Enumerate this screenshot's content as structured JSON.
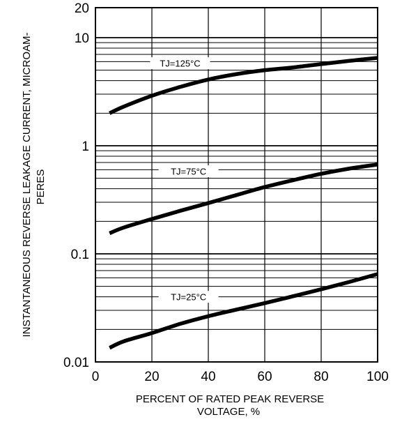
{
  "chart_data": {
    "type": "line",
    "title": "",
    "xlabel_lines": [
      "PERCENT OF RATED PEAK REVERSE",
      "VOLTAGE, %"
    ],
    "ylabel_lines": [
      "INSTANTANEOUS REVERSE LEAKAGE CURRENT, MICROAM-",
      "PERES"
    ],
    "xlim": [
      0,
      100
    ],
    "ylim": [
      0.01,
      20
    ],
    "yscale": "log",
    "grid": true,
    "legend": "none",
    "x_ticks": [
      {
        "value": 0,
        "label": "0"
      },
      {
        "value": 20,
        "label": "20"
      },
      {
        "value": 40,
        "label": "40"
      },
      {
        "value": 60,
        "label": "60"
      },
      {
        "value": 80,
        "label": "80"
      },
      {
        "value": 100,
        "label": "100"
      }
    ],
    "y_ticks": [
      {
        "value": 0.01,
        "label": "0.01"
      },
      {
        "value": 0.1,
        "label": "0.1"
      },
      {
        "value": 1,
        "label": "1"
      },
      {
        "value": 10,
        "label": "10"
      },
      {
        "value": 20,
        "label": "20"
      }
    ],
    "series": [
      {
        "name": "TJ=125°C",
        "label_at": {
          "x": 30,
          "y": 5.8
        },
        "x": [
          5,
          10,
          20,
          30,
          40,
          50,
          60,
          70,
          80,
          90,
          100
        ],
        "y": [
          2.0,
          2.3,
          2.9,
          3.5,
          4.1,
          4.6,
          5.0,
          5.3,
          5.7,
          6.1,
          6.5
        ]
      },
      {
        "name": "TJ=75°C",
        "label_at": {
          "x": 33,
          "y": 0.58
        },
        "x": [
          5,
          10,
          20,
          30,
          40,
          50,
          60,
          70,
          80,
          90,
          100
        ],
        "y": [
          0.155,
          0.175,
          0.21,
          0.25,
          0.295,
          0.35,
          0.415,
          0.48,
          0.55,
          0.615,
          0.67
        ]
      },
      {
        "name": "TJ=25°C",
        "label_at": {
          "x": 33,
          "y": 0.04
        },
        "x": [
          5,
          10,
          20,
          30,
          40,
          50,
          60,
          70,
          80,
          90,
          100
        ],
        "y": [
          0.0135,
          0.0155,
          0.0185,
          0.0225,
          0.0265,
          0.0305,
          0.035,
          0.0405,
          0.047,
          0.055,
          0.065
        ]
      }
    ],
    "colors": {
      "line": "#000000",
      "grid": "#000000",
      "background": "#ffffff"
    }
  }
}
